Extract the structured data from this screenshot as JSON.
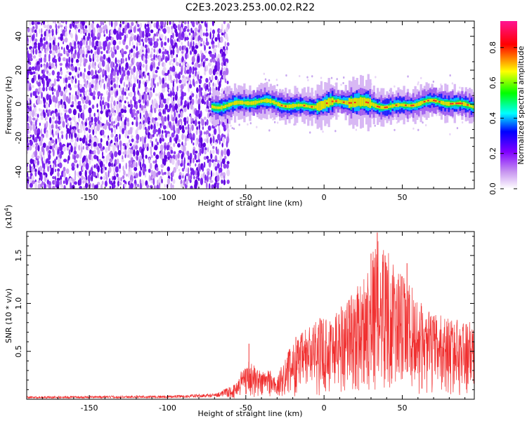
{
  "title": "C2E3.2023.253.00.02.R22",
  "chart_data": [
    {
      "type": "heatmap",
      "xlabel": "Height of straight line (km)",
      "ylabel": "Frequency (Hz)",
      "xlim": [
        -190,
        96
      ],
      "ylim": [
        -50,
        49
      ],
      "xticks": [
        -150,
        -100,
        -50,
        0,
        50
      ],
      "yticks": [
        -40,
        -20,
        0,
        20,
        40
      ],
      "noise_region_end_km": -62,
      "signal_band_hz": [
        -5,
        5
      ],
      "colorbar": {
        "label": "Normalized spectral amplitude",
        "range": [
          0.0,
          0.95
        ],
        "ticks": [
          "0.0",
          "0.2",
          "0.4",
          "0.6",
          "0.8"
        ],
        "colors": [
          "#ffffff",
          "#a020f0",
          "#0000ff",
          "#00ffff",
          "#00ff00",
          "#ffff00",
          "#ff0000",
          "#ff1493"
        ]
      }
    },
    {
      "type": "line",
      "xlabel": "Height of straight line (km)",
      "ylabel": "SNR (10 * v/v)",
      "multiplier_label": "(x10",
      "multiplier_exp": "4",
      "multiplier_close": ")",
      "xlim": [
        -190,
        96
      ],
      "ylim": [
        0,
        17500
      ],
      "xticks": [
        -150,
        -100,
        -50,
        0,
        50
      ],
      "yticks": [
        5000,
        10000,
        15000
      ],
      "ytick_labels": [
        "0.5",
        "1.0",
        "1.5"
      ],
      "color": "#f03030",
      "envelope": {
        "x": [
          -190,
          -100,
          -70,
          -57,
          -50,
          -45,
          -40,
          -35,
          -30,
          -25,
          -20,
          -15,
          -10,
          -5,
          0,
          5,
          10,
          15,
          20,
          25,
          30,
          35,
          40,
          45,
          50,
          55,
          60,
          65,
          70,
          75,
          80,
          85,
          90,
          96
        ],
        "y": [
          300,
          400,
          600,
          1500,
          4000,
          3500,
          2800,
          3200,
          2000,
          4500,
          5500,
          6500,
          7500,
          7800,
          8500,
          8500,
          9500,
          10500,
          11000,
          12000,
          15000,
          16000,
          15500,
          13000,
          12500,
          11500,
          10000,
          9000,
          8500,
          8500,
          8200,
          8000,
          7800,
          7600
        ]
      },
      "peaks": [
        {
          "x": 34,
          "y": 17400
        },
        {
          "x": 30,
          "y": 15200
        },
        {
          "x": 39,
          "y": 15000
        },
        {
          "x": 53,
          "y": 14200
        },
        {
          "x": -48,
          "y": 5800
        },
        {
          "x": -18,
          "y": 6500
        }
      ]
    }
  ]
}
